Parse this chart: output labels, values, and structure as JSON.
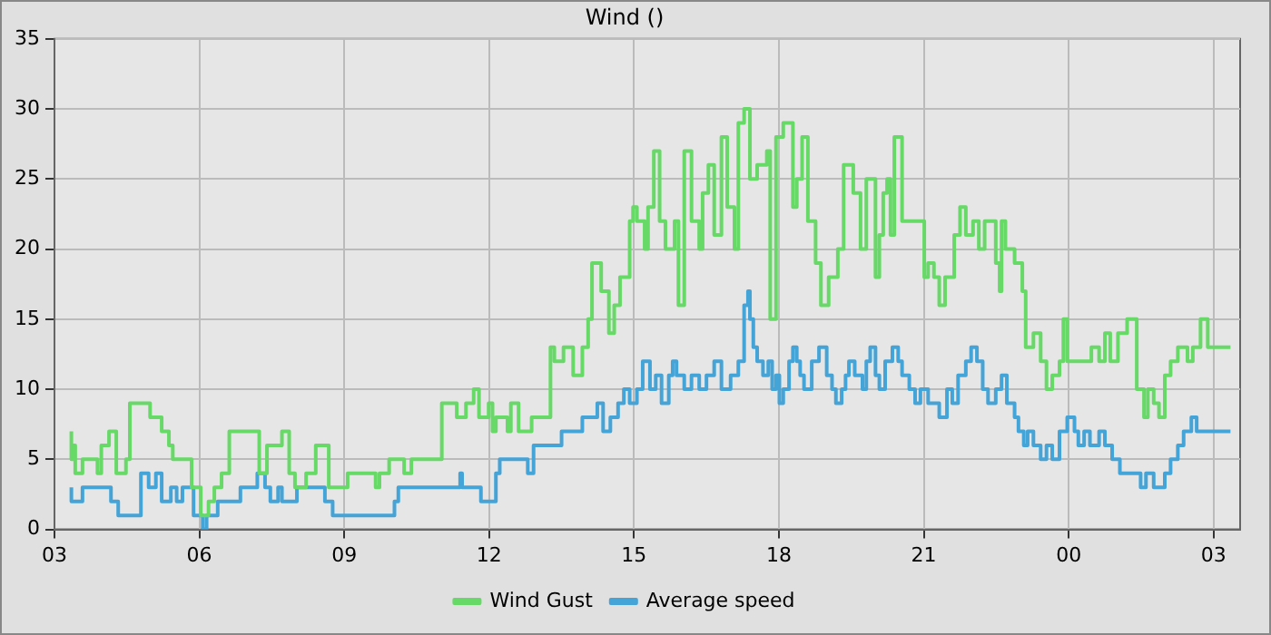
{
  "chart_data": {
    "type": "step",
    "title": "Wind ()",
    "xlim": [
      3,
      27.55
    ],
    "ylim": [
      0,
      35
    ],
    "xticks": [
      {
        "value": 3,
        "label": "03"
      },
      {
        "value": 6,
        "label": "06"
      },
      {
        "value": 9,
        "label": "09"
      },
      {
        "value": 12,
        "label": "12"
      },
      {
        "value": 15,
        "label": "15"
      },
      {
        "value": 18,
        "label": "18"
      },
      {
        "value": 21,
        "label": "21"
      },
      {
        "value": 24,
        "label": "00"
      },
      {
        "value": 27,
        "label": "03"
      }
    ],
    "yticks": [
      0,
      5,
      10,
      15,
      20,
      25,
      30,
      35
    ],
    "grid": true,
    "legend": "bottom",
    "marker": "none",
    "line_style": "solid",
    "series": [
      {
        "name": "Wind Gust",
        "color": "#66d966",
        "x": [
          3.35,
          3.39,
          3.43,
          3.58,
          3.89,
          3.97,
          4.13,
          4.28,
          4.48,
          4.56,
          4.98,
          5.22,
          5.37,
          5.45,
          5.84,
          6.03,
          6.19,
          6.31,
          6.46,
          6.62,
          7.24,
          7.4,
          7.71,
          7.86,
          7.98,
          8.21,
          8.41,
          8.68,
          9.07,
          9.65,
          9.73,
          9.93,
          10.24,
          10.39,
          11.02,
          11.33,
          11.52,
          11.68,
          11.79,
          11.99,
          12.07,
          12.14,
          12.38,
          12.45,
          12.61,
          12.88,
          13.27,
          13.35,
          13.54,
          13.74,
          13.93,
          14.05,
          14.13,
          14.32,
          14.48,
          14.59,
          14.71,
          14.91,
          14.98,
          15.06,
          15.22,
          15.29,
          15.41,
          15.53,
          15.65,
          15.84,
          15.92,
          16.04,
          16.19,
          16.35,
          16.42,
          16.54,
          16.66,
          16.81,
          16.93,
          17.08,
          17.16,
          17.28,
          17.4,
          17.55,
          17.63,
          17.75,
          17.82,
          17.94,
          18.09,
          18.29,
          18.37,
          18.48,
          18.6,
          18.76,
          18.87,
          19.03,
          19.22,
          19.34,
          19.54,
          19.69,
          19.81,
          20.0,
          20.08,
          20.16,
          20.24,
          20.31,
          20.39,
          20.55,
          20.7,
          21.01,
          21.09,
          21.21,
          21.32,
          21.44,
          21.63,
          21.75,
          21.87,
          22.02,
          22.14,
          22.26,
          22.49,
          22.57,
          22.61,
          22.69,
          22.88,
          23.04,
          23.11,
          23.27,
          23.42,
          23.54,
          23.66,
          23.81,
          23.89,
          23.97,
          24.47,
          24.63,
          24.75,
          24.86,
          25.02,
          25.21,
          25.41,
          25.56,
          25.64,
          25.76,
          25.87,
          25.99,
          26.11,
          26.26,
          26.46,
          26.57,
          26.73,
          26.88,
          27.04,
          27.35
        ],
        "values": [
          7,
          5,
          6,
          4,
          5,
          4,
          6,
          7,
          4,
          5,
          9,
          8,
          7,
          6,
          5,
          3,
          1,
          2,
          3,
          4,
          7,
          4,
          6,
          7,
          4,
          3,
          4,
          6,
          3,
          4,
          3,
          4,
          5,
          4,
          5,
          9,
          8,
          9,
          10,
          8,
          9,
          7,
          8,
          7,
          9,
          7,
          8,
          13,
          12,
          13,
          11,
          13,
          15,
          19,
          17,
          14,
          16,
          18,
          22,
          23,
          22,
          20,
          23,
          27,
          22,
          20,
          22,
          16,
          27,
          22,
          20,
          24,
          26,
          21,
          28,
          23,
          20,
          29,
          30,
          25,
          26,
          26,
          27,
          15,
          28,
          29,
          23,
          25,
          28,
          22,
          19,
          16,
          18,
          20,
          26,
          24,
          20,
          25,
          18,
          21,
          24,
          25,
          21,
          28,
          22,
          22,
          18,
          19,
          18,
          16,
          18,
          21,
          23,
          21,
          22,
          20,
          22,
          19,
          17,
          22,
          20,
          19,
          17,
          13,
          14,
          12,
          10,
          11,
          12,
          15,
          12,
          13,
          12,
          14,
          12,
          14,
          15,
          10,
          8,
          10,
          9,
          8,
          11,
          12,
          13,
          12,
          13,
          15,
          13,
          13
        ]
      },
      {
        "name": "Average speed",
        "color": "#44a4d8",
        "x": [
          3.35,
          3.58,
          4.17,
          4.32,
          4.79,
          4.95,
          5.1,
          5.22,
          5.41,
          5.53,
          5.65,
          5.88,
          6.07,
          6.15,
          6.38,
          6.85,
          7.2,
          7.36,
          7.47,
          7.63,
          7.71,
          8.02,
          8.6,
          8.76,
          10.04,
          10.12,
          11.4,
          11.44,
          11.83,
          12.14,
          12.22,
          12.8,
          12.92,
          13.5,
          13.93,
          14.24,
          14.36,
          14.51,
          14.67,
          14.79,
          14.91,
          15.06,
          15.18,
          15.33,
          15.45,
          15.57,
          15.72,
          15.8,
          15.88,
          16.04,
          16.19,
          16.35,
          16.5,
          16.66,
          16.81,
          17.0,
          17.16,
          17.28,
          17.36,
          17.4,
          17.47,
          17.55,
          17.67,
          17.78,
          17.86,
          17.94,
          18.01,
          18.09,
          18.21,
          18.29,
          18.37,
          18.44,
          18.52,
          18.68,
          18.83,
          18.99,
          19.1,
          19.18,
          19.3,
          19.38,
          19.45,
          19.57,
          19.73,
          19.81,
          19.89,
          20.0,
          20.08,
          20.2,
          20.35,
          20.47,
          20.55,
          20.7,
          20.82,
          20.93,
          21.09,
          21.32,
          21.48,
          21.59,
          21.71,
          21.87,
          21.98,
          22.1,
          22.22,
          22.33,
          22.49,
          22.61,
          22.72,
          22.88,
          22.96,
          23.07,
          23.15,
          23.27,
          23.42,
          23.54,
          23.66,
          23.81,
          23.97,
          24.12,
          24.2,
          24.32,
          24.44,
          24.63,
          24.75,
          24.9,
          25.06,
          25.49,
          25.6,
          25.76,
          25.99,
          26.11,
          26.26,
          26.38,
          26.54,
          26.65,
          26.77,
          27.35
        ],
        "values": [
          3,
          2,
          3,
          2,
          1,
          4,
          3,
          4,
          2,
          3,
          2,
          3,
          1,
          0,
          1,
          2,
          3,
          4,
          3,
          2,
          3,
          2,
          3,
          2,
          1,
          2,
          3,
          4,
          3,
          2,
          4,
          5,
          4,
          6,
          7,
          8,
          9,
          7,
          8,
          9,
          10,
          9,
          10,
          12,
          10,
          11,
          9,
          11,
          12,
          11,
          10,
          11,
          10,
          11,
          12,
          10,
          11,
          12,
          16,
          17,
          15,
          13,
          12,
          11,
          12,
          10,
          11,
          9,
          10,
          12,
          13,
          12,
          11,
          10,
          12,
          13,
          11,
          10,
          9,
          10,
          11,
          12,
          11,
          10,
          12,
          13,
          11,
          10,
          12,
          13,
          12,
          11,
          10,
          9,
          10,
          9,
          8,
          10,
          9,
          11,
          12,
          13,
          12,
          10,
          9,
          10,
          11,
          9,
          8,
          7,
          6,
          7,
          6,
          5,
          6,
          5,
          7,
          8,
          7,
          6,
          7,
          6,
          7,
          6,
          5,
          4,
          3,
          4,
          3,
          4,
          5,
          6,
          7,
          8,
          7,
          7
        ]
      }
    ]
  }
}
